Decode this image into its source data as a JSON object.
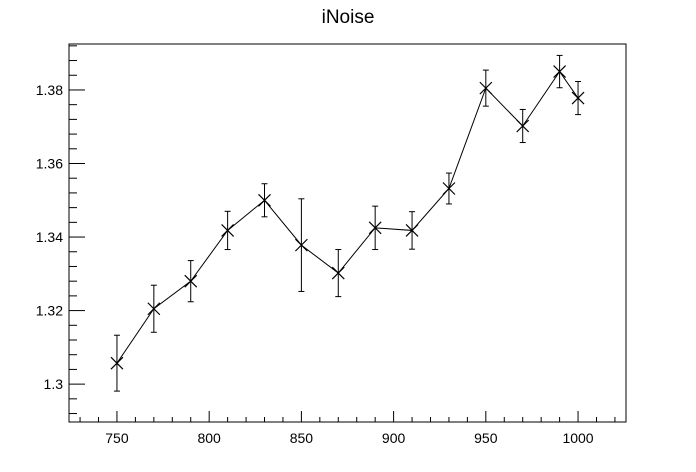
{
  "chart_data": {
    "type": "line",
    "title": "iNoise",
    "xlabel": "",
    "ylabel": "",
    "xlim": [
      724,
      1026
    ],
    "ylim": [
      1.2897,
      1.3925
    ],
    "grid": false,
    "legend": null,
    "marker": "x",
    "line_color": "#000000",
    "x_ticks": [
      750,
      800,
      850,
      900,
      950,
      1000
    ],
    "x_tick_labels": [
      "750",
      "800",
      "850",
      "900",
      "950",
      "1000"
    ],
    "y_ticks": [
      1.3,
      1.32,
      1.34,
      1.36,
      1.38
    ],
    "y_tick_labels": [
      "1.3",
      "1.32",
      "1.34",
      "1.36",
      "1.38"
    ],
    "series": [
      {
        "x": [
          750,
          770,
          790,
          810,
          830,
          850,
          870,
          890,
          910,
          930,
          950,
          970,
          990,
          1000
        ],
        "y": [
          1.3057,
          1.3205,
          1.328,
          1.3418,
          1.35,
          1.3378,
          1.3302,
          1.3425,
          1.3418,
          1.3532,
          1.3805,
          1.3702,
          1.385,
          1.3778
        ],
        "err": [
          0.0076,
          0.0064,
          0.0056,
          0.0052,
          0.0045,
          0.0126,
          0.0064,
          0.0059,
          0.0051,
          0.0042,
          0.0049,
          0.0045,
          0.0044,
          0.0045
        ]
      }
    ]
  }
}
